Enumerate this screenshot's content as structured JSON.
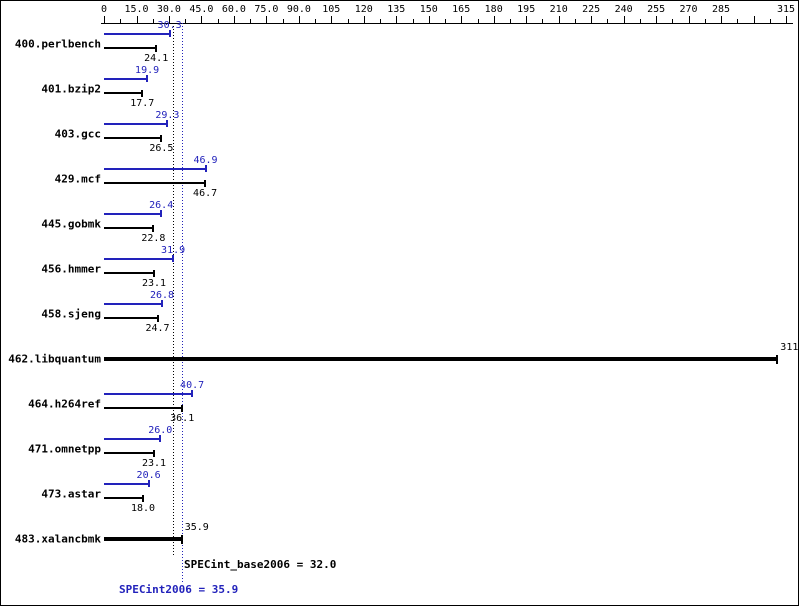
{
  "chart_data": {
    "type": "bar",
    "orientation": "horizontal",
    "axis": {
      "min": 0,
      "max": 315,
      "major_step": 15,
      "minor_step": 7.5,
      "tick_labels": [
        "0",
        "15.0",
        "30.0",
        "45.0",
        "60.0",
        "75.0",
        "90.0",
        "105",
        "120",
        "135",
        "150",
        "165",
        "180",
        "195",
        "210",
        "225",
        "240",
        "255",
        "270",
        "285",
        "",
        "315"
      ]
    },
    "series": [
      {
        "benchmark": "400.perlbench",
        "peak": 30.3,
        "peak_label": "30.3",
        "base": 24.1,
        "base_label": "24.1"
      },
      {
        "benchmark": "401.bzip2",
        "peak": 19.9,
        "peak_label": "19.9",
        "base": 17.7,
        "base_label": "17.7"
      },
      {
        "benchmark": "403.gcc",
        "peak": 29.3,
        "peak_label": "29.3",
        "base": 26.5,
        "base_label": "26.5"
      },
      {
        "benchmark": "429.mcf",
        "peak": 46.9,
        "peak_label": "46.9",
        "base": 46.7,
        "base_label": "46.7"
      },
      {
        "benchmark": "445.gobmk",
        "peak": 26.4,
        "peak_label": "26.4",
        "base": 22.8,
        "base_label": "22.8"
      },
      {
        "benchmark": "456.hmmer",
        "peak": 31.9,
        "peak_label": "31.9",
        "base": 23.1,
        "base_label": "23.1"
      },
      {
        "benchmark": "458.sjeng",
        "peak": 26.8,
        "peak_label": "26.8",
        "base": 24.7,
        "base_label": "24.7"
      },
      {
        "benchmark": "462.libquantum",
        "value": 311,
        "value_label": "311"
      },
      {
        "benchmark": "464.h264ref",
        "peak": 40.7,
        "peak_label": "40.7",
        "base": 36.1,
        "base_label": "36.1"
      },
      {
        "benchmark": "471.omnetpp",
        "peak": 26.0,
        "peak_label": "26.0",
        "base": 23.1,
        "base_label": "23.1"
      },
      {
        "benchmark": "473.astar",
        "peak": 20.6,
        "peak_label": "20.6",
        "base": 18.0,
        "base_label": "18.0"
      },
      {
        "benchmark": "483.xalancbmk",
        "value": 35.9,
        "value_label": "35.9"
      }
    ],
    "mean_base": 32.0,
    "mean_peak": 35.9,
    "footers": {
      "base": "SPECint_base2006 = 32.0",
      "peak": "SPECint2006 = 35.9"
    },
    "colors": {
      "peak": "#2222bb",
      "base": "#000000"
    }
  }
}
